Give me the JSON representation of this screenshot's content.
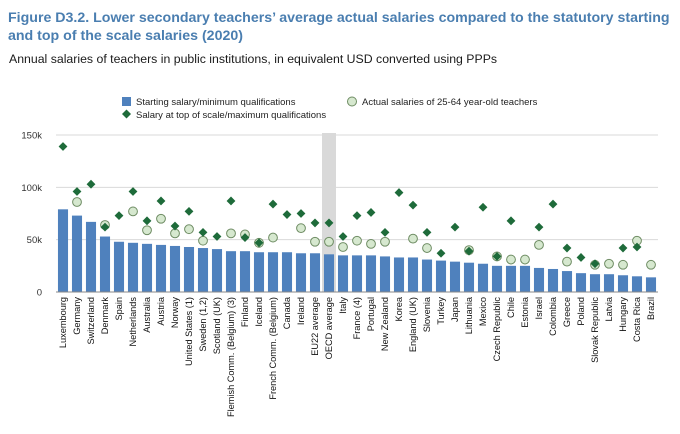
{
  "header": {
    "title": "Figure D3.2. Lower secondary teachers’ average actual salaries compared to the statutory starting and top of the scale salaries (2020)",
    "subtitle": "Annual salaries of teachers in public institutions, in equivalent USD converted using PPPs"
  },
  "colors": {
    "bar": "#4f81bd",
    "highlight_band": "#d9d9d9",
    "diamond": "#1e6b3a",
    "circle_fill": "#d6e8cf",
    "circle_stroke": "#6e8c63",
    "grid": "#d9d9d9",
    "title": "#4a7eb0"
  },
  "chart_data": {
    "type": "bar",
    "highlighted_category": "OECD average",
    "categories": [
      "Luxembourg",
      "Germany",
      "Switzerland",
      "Denmark",
      "Spain",
      "Netherlands",
      "Australia",
      "Austria",
      "Norway",
      "United States (1)",
      "Sweden (1,2)",
      "Scotland (UK)",
      "Flemish Comm. (Belgium) (3)",
      "Finland",
      "Iceland",
      "French Comm. (Belgium)",
      "Canada",
      "Ireland",
      "EU22 average",
      "OECD average",
      "Italy",
      "France (4)",
      "Portugal",
      "New Zealand",
      "Korea",
      "England (UK)",
      "Slovenia",
      "Turkey",
      "Japan",
      "Lithuania",
      "Mexico",
      "Czech Republic",
      "Chile",
      "Estonia",
      "Israel",
      "Colombia",
      "Greece",
      "Poland",
      "Slovak Republic",
      "Latvia",
      "Hungary",
      "Costa Rica",
      "Brazil"
    ],
    "series": [
      {
        "name": "Starting salary/minimum qualifications",
        "marker": "bar",
        "values": [
          79,
          73,
          67,
          53,
          48,
          47,
          46,
          45,
          44,
          43,
          42,
          41,
          39,
          39,
          38,
          38,
          38,
          37,
          37,
          36,
          35,
          35,
          35,
          34,
          33,
          33,
          31,
          30,
          29,
          28,
          27,
          25,
          25,
          25,
          23,
          22,
          20,
          18,
          17,
          17,
          16,
          15,
          14
        ]
      },
      {
        "name": "Salary at top of scale/maximum qualifications",
        "marker": "diamond",
        "values": [
          139,
          96,
          103,
          62,
          73,
          96,
          68,
          87,
          63,
          77,
          57,
          53,
          87,
          52,
          47,
          84,
          74,
          75,
          66,
          66,
          53,
          73,
          76,
          57,
          95,
          83,
          57,
          37,
          62,
          39,
          81,
          34,
          68,
          null,
          62,
          84,
          42,
          33,
          27,
          null,
          42,
          43,
          null
        ]
      },
      {
        "name": "Actual salaries of 25-64 year-old teachers",
        "marker": "circle",
        "values": [
          null,
          86,
          null,
          64,
          null,
          77,
          59,
          70,
          56,
          60,
          49,
          null,
          56,
          55,
          47,
          52,
          null,
          61,
          48,
          48,
          43,
          49,
          46,
          48,
          null,
          51,
          42,
          null,
          null,
          40,
          null,
          34,
          31,
          31,
          45,
          null,
          29,
          null,
          26,
          27,
          26,
          49,
          26
        ]
      }
    ],
    "y_axis": {
      "min": 0,
      "max": 150,
      "ticks": [
        0,
        50,
        100,
        150
      ],
      "tick_labels": [
        "0",
        "50k",
        "100k",
        "150k"
      ]
    },
    "grid": "horizontal",
    "legend_position": "top"
  }
}
